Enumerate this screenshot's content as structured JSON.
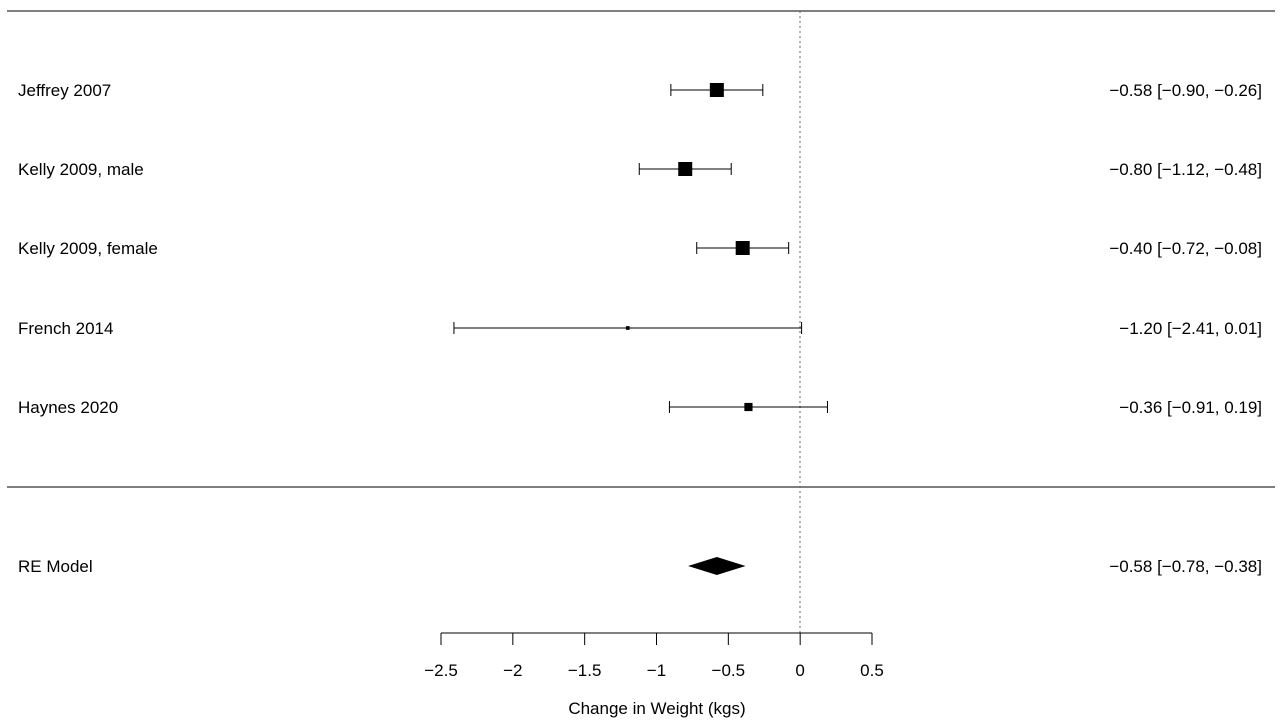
{
  "chart_data": {
    "type": "forest",
    "xlabel": "Change in Weight (kgs)",
    "xlim": [
      -2.5,
      0.5
    ],
    "xticks": [
      -2.5,
      -2,
      -1.5,
      -1,
      -0.5,
      0,
      0.5
    ],
    "xtick_labels": [
      "−2.5",
      "−2",
      "−1.5",
      "−1",
      "−0.5",
      "0",
      "0.5"
    ],
    "reference_line": 0,
    "studies": [
      {
        "label": "Jeffrey 2007",
        "estimate": -0.58,
        "ci_low": -0.9,
        "ci_high": -0.26,
        "weight": 1.0,
        "ci_text": "−0.58 [−0.90, −0.26]"
      },
      {
        "label": "Kelly 2009, male",
        "estimate": -0.8,
        "ci_low": -1.12,
        "ci_high": -0.48,
        "weight": 1.0,
        "ci_text": "−0.80 [−1.12, −0.48]"
      },
      {
        "label": "Kelly 2009, female",
        "estimate": -0.4,
        "ci_low": -0.72,
        "ci_high": -0.08,
        "weight": 1.0,
        "ci_text": "−0.40 [−0.72, −0.08]"
      },
      {
        "label": "French 2014",
        "estimate": -1.2,
        "ci_low": -2.41,
        "ci_high": 0.01,
        "weight": 0.07,
        "ci_text": "−1.20 [−2.41,  0.01]"
      },
      {
        "label": "Haynes 2020",
        "estimate": -0.36,
        "ci_low": -0.91,
        "ci_high": 0.19,
        "weight": 0.34,
        "ci_text": "−0.36 [−0.91,  0.19]"
      }
    ],
    "summary": {
      "label": "RE Model",
      "estimate": -0.58,
      "ci_low": -0.78,
      "ci_high": -0.38,
      "ci_text": "−0.58 [−0.78, −0.38]"
    }
  }
}
